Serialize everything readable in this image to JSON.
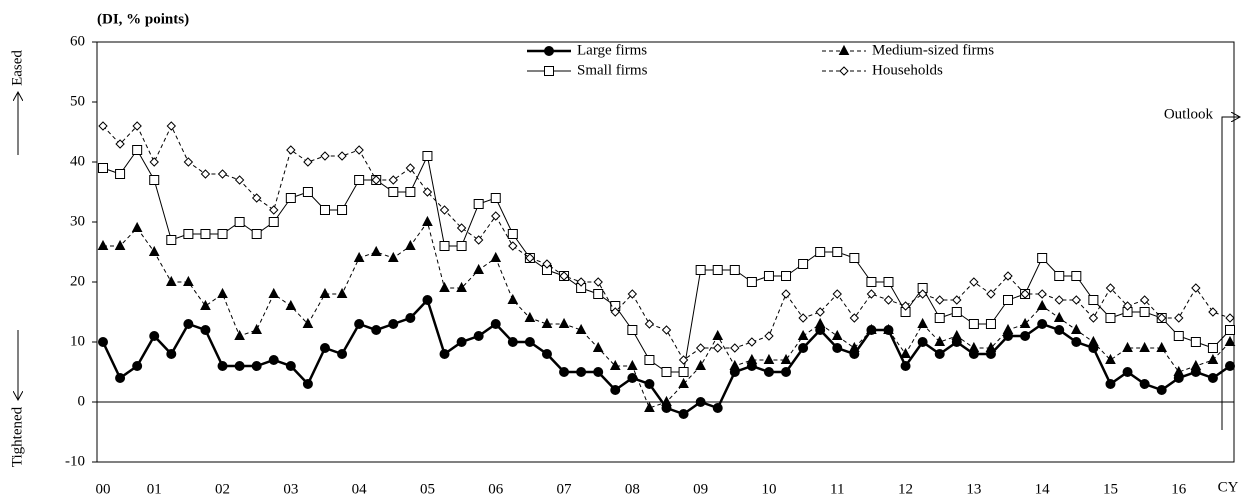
{
  "chart_data": {
    "type": "line",
    "ylabel": "(DI, % points)",
    "xlabel": "CY",
    "annotations": {
      "up": "Eased",
      "down": "Tightened",
      "outlook": "Outlook"
    },
    "categories": [
      "00",
      null,
      null,
      "01",
      null,
      null,
      null,
      "02",
      null,
      null,
      null,
      "03",
      null,
      null,
      null,
      "04",
      null,
      null,
      null,
      "05",
      null,
      null,
      null,
      "06",
      null,
      null,
      null,
      "07",
      null,
      null,
      null,
      "08",
      null,
      null,
      null,
      "09",
      null,
      null,
      null,
      "10",
      null,
      null,
      null,
      "11",
      null,
      null,
      null,
      "12",
      null,
      null,
      null,
      "13",
      null,
      null,
      null,
      "14",
      null,
      null,
      null,
      "15",
      null,
      null,
      null,
      "16",
      null,
      null,
      null
    ],
    "ylim": [
      -10,
      60
    ],
    "yticks": [
      -10,
      0,
      10,
      20,
      30,
      40,
      50,
      60
    ],
    "grid": false,
    "series": [
      {
        "name": "Large firms",
        "color": "#000000",
        "marker": "circle",
        "line_style": "solid",
        "line_width": 2.5,
        "values": [
          10,
          4,
          6,
          11,
          8,
          13,
          12,
          6,
          6,
          6,
          7,
          6,
          3,
          9,
          8,
          13,
          12,
          13,
          14,
          17,
          8,
          10,
          11,
          13,
          10,
          10,
          8,
          5,
          5,
          5,
          2,
          4,
          3,
          -1,
          -2,
          0,
          -1,
          5,
          6,
          5,
          5,
          9,
          12,
          9,
          8,
          12,
          12,
          6,
          10,
          8,
          10,
          8,
          8,
          11,
          11,
          13,
          12,
          10,
          9,
          3,
          5,
          3,
          2,
          4,
          5,
          4,
          6
        ]
      },
      {
        "name": "Medium-sized firms",
        "color": "#000000",
        "marker": "triangle",
        "line_style": "dashed",
        "line_width": 1,
        "values": [
          26,
          26,
          29,
          25,
          20,
          20,
          16,
          18,
          11,
          12,
          18,
          16,
          13,
          18,
          18,
          24,
          25,
          24,
          26,
          30,
          19,
          19,
          22,
          24,
          17,
          14,
          13,
          13,
          12,
          9,
          6,
          6,
          -1,
          0,
          3,
          6,
          11,
          6,
          7,
          7,
          7,
          11,
          13,
          11,
          9,
          12,
          12,
          8,
          13,
          10,
          11,
          9,
          9,
          12,
          13,
          16,
          14,
          12,
          10,
          7,
          9,
          9,
          9,
          5,
          6,
          7,
          10
        ]
      },
      {
        "name": "Small firms",
        "color": "#000000",
        "marker": "square",
        "line_style": "solid",
        "line_width": 1,
        "values": [
          39,
          38,
          42,
          37,
          27,
          28,
          28,
          28,
          30,
          28,
          30,
          34,
          35,
          32,
          32,
          37,
          37,
          35,
          35,
          41,
          26,
          26,
          33,
          34,
          28,
          24,
          22,
          21,
          19,
          18,
          16,
          12,
          7,
          5,
          5,
          22,
          22,
          22,
          20,
          21,
          21,
          23,
          25,
          25,
          24,
          20,
          20,
          15,
          19,
          14,
          15,
          13,
          13,
          17,
          18,
          24,
          21,
          21,
          17,
          14,
          15,
          15,
          14,
          11,
          10,
          9,
          12
        ]
      },
      {
        "name": "Households",
        "color": "#000000",
        "marker": "diamond",
        "line_style": "dashed",
        "line_width": 1,
        "values": [
          46,
          43,
          46,
          40,
          46,
          40,
          38,
          38,
          37,
          34,
          32,
          42,
          40,
          41,
          41,
          42,
          37,
          37,
          39,
          35,
          32,
          29,
          27,
          31,
          26,
          24,
          23,
          21,
          20,
          20,
          15,
          18,
          13,
          12,
          7,
          9,
          9,
          9,
          10,
          11,
          18,
          14,
          15,
          18,
          14,
          18,
          17,
          16,
          18,
          17,
          17,
          20,
          18,
          21,
          18,
          18,
          17,
          17,
          14,
          19,
          16,
          17,
          14,
          14,
          19,
          15,
          14
        ]
      }
    ]
  }
}
